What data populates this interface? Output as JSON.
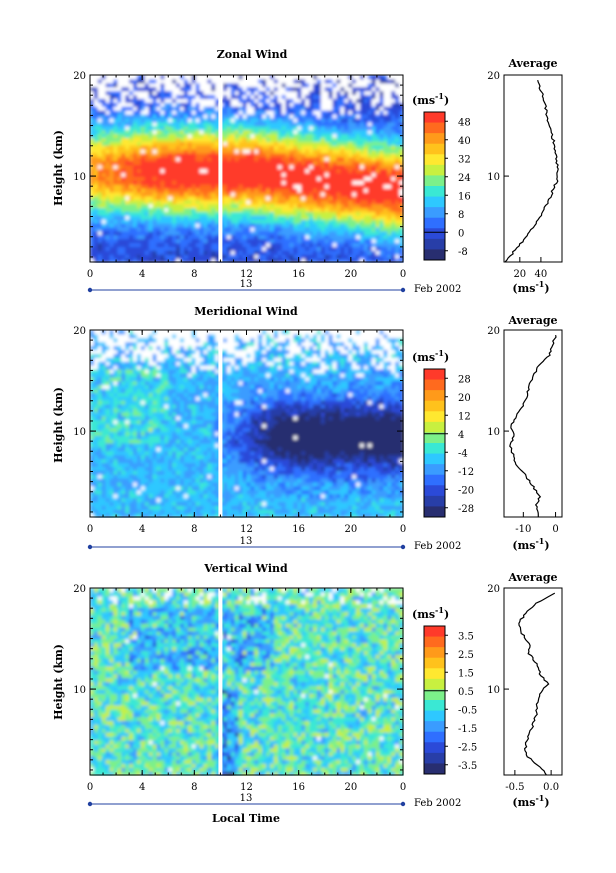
{
  "chart_data": [
    {
      "type": "heatmap",
      "title": "Zonal Wind",
      "xlabel": "",
      "ylabel": "Height (km)",
      "x_ticks": [
        "0",
        "4",
        "8",
        "12",
        "16",
        "20",
        "0"
      ],
      "y_ticks": [
        "10",
        "20"
      ],
      "ylim": [
        1.5,
        20
      ],
      "day_label": "13",
      "date_label": "Feb 2002",
      "colorbar_unit": "(ms",
      "colorbar_unit_exp": "-1",
      "colorbar_unit_close": ")",
      "colorbar_ticks": [
        "48",
        "40",
        "32",
        "24",
        "16",
        "8",
        "0",
        "-8"
      ],
      "colorbar_colors": [
        "#ff3a2a",
        "#ff6a1e",
        "#ff9a1a",
        "#ffc21c",
        "#ffe830",
        "#c8f040",
        "#7cf08a",
        "#3ae8d4",
        "#2ec8ff",
        "#3a9cff",
        "#2f6fff",
        "#2b4ad8",
        "#283ea8",
        "#282e70"
      ],
      "description_fields": {
        "time_range_hours": [
          0,
          24
        ],
        "value_range": [
          -8,
          52
        ],
        "jet_max_height_km": [
          8,
          14
        ],
        "data_gap_hour": 10
      },
      "average_profile": {
        "title": "Average",
        "x_ticks": [
          "20",
          "40"
        ],
        "xlim": [
          5,
          60
        ],
        "xunit": "(ms",
        "xunit_exp": "-1",
        "xunit_close": ")",
        "height": [
          1.5,
          2.5,
          3.5,
          4.5,
          5.5,
          6.5,
          7.5,
          8.5,
          9.5,
          10.5,
          11.5,
          12.5,
          13.5,
          14.5,
          15.5,
          16.5,
          17.5,
          18.5,
          19.5
        ],
        "value": [
          7,
          14,
          22,
          29,
          36,
          42,
          47,
          51,
          55,
          56,
          55,
          54,
          52,
          49,
          47,
          45,
          43,
          40,
          37
        ]
      }
    },
    {
      "type": "heatmap",
      "title": "Meridional Wind",
      "xlabel": "",
      "ylabel": "Height (km)",
      "x_ticks": [
        "0",
        "4",
        "8",
        "12",
        "16",
        "20",
        "0"
      ],
      "y_ticks": [
        "10",
        "20"
      ],
      "ylim": [
        1.5,
        20
      ],
      "day_label": "13",
      "date_label": "Feb 2002",
      "colorbar_unit": "(ms",
      "colorbar_unit_exp": "-1",
      "colorbar_unit_close": ")",
      "colorbar_ticks": [
        "28",
        "20",
        "12",
        "4",
        "-4",
        "-12",
        "-20",
        "-28"
      ],
      "colorbar_colors": [
        "#ff3a2a",
        "#ff6a1e",
        "#ff9a1a",
        "#ffc21c",
        "#ffe830",
        "#c8f040",
        "#7cf08a",
        "#3ae8d4",
        "#2ec8ff",
        "#3a9cff",
        "#2f6fff",
        "#2b4ad8",
        "#283ea8",
        "#282e70"
      ],
      "description_fields": {
        "time_range_hours": [
          0,
          24
        ],
        "value_range": [
          -32,
          32
        ],
        "data_gap_hour": 10
      },
      "average_profile": {
        "title": "Average",
        "x_ticks": [
          "-10",
          "0"
        ],
        "xlim": [
          -16,
          2
        ],
        "xunit": "(ms",
        "xunit_exp": "-1",
        "xunit_close": ")",
        "height": [
          1.5,
          2.5,
          3.5,
          4.5,
          5.5,
          6.5,
          7.5,
          8.5,
          9.5,
          10.5,
          11.5,
          12.5,
          13.5,
          14.5,
          15.5,
          16.5,
          17.5,
          18.5,
          19.5
        ],
        "value": [
          -5,
          -6,
          -5,
          -7,
          -9,
          -12,
          -13,
          -14,
          -13,
          -14,
          -12,
          -10,
          -9,
          -8,
          -7,
          -5,
          -2,
          -1,
          0
        ]
      }
    },
    {
      "type": "heatmap",
      "title": "Vertical Wind",
      "xlabel": "Local Time",
      "ylabel": "Height (km)",
      "x_ticks": [
        "0",
        "4",
        "8",
        "12",
        "16",
        "20",
        "0"
      ],
      "y_ticks": [
        "10",
        "20"
      ],
      "ylim": [
        1.5,
        20
      ],
      "day_label": "13",
      "date_label": "Feb 2002",
      "colorbar_unit": "(ms",
      "colorbar_unit_exp": "-1",
      "colorbar_unit_close": ")",
      "colorbar_ticks": [
        "3.5",
        "2.5",
        "1.5",
        "0.5",
        "-0.5",
        "-1.5",
        "-2.5",
        "-3.5"
      ],
      "colorbar_colors": [
        "#ff3a2a",
        "#ff6a1e",
        "#ff9a1a",
        "#ffc21c",
        "#ffe830",
        "#c8f040",
        "#7cf08a",
        "#3ae8d4",
        "#2ec8ff",
        "#3a9cff",
        "#2f6fff",
        "#2b4ad8",
        "#283ea8",
        "#282e70"
      ],
      "description_fields": {
        "time_range_hours": [
          0,
          24
        ],
        "value_range": [
          -4,
          4
        ],
        "data_gap_hour": 10
      },
      "average_profile": {
        "title": "Average",
        "x_ticks": [
          "-0.5",
          "0.0"
        ],
        "xlim": [
          -0.65,
          0.15
        ],
        "xunit": "(ms",
        "xunit_exp": "-1",
        "xunit_close": ")",
        "height": [
          1.5,
          2.5,
          3.5,
          4.5,
          5.5,
          6.5,
          7.5,
          8.5,
          9.5,
          10.5,
          11.5,
          12.5,
          13.5,
          14.5,
          15.5,
          16.5,
          17.5,
          18.5,
          19.5
        ],
        "value": [
          -0.05,
          -0.2,
          -0.35,
          -0.35,
          -0.3,
          -0.25,
          -0.2,
          -0.2,
          -0.15,
          -0.05,
          -0.15,
          -0.2,
          -0.3,
          -0.3,
          -0.4,
          -0.45,
          -0.35,
          -0.2,
          0.05
        ]
      }
    }
  ]
}
